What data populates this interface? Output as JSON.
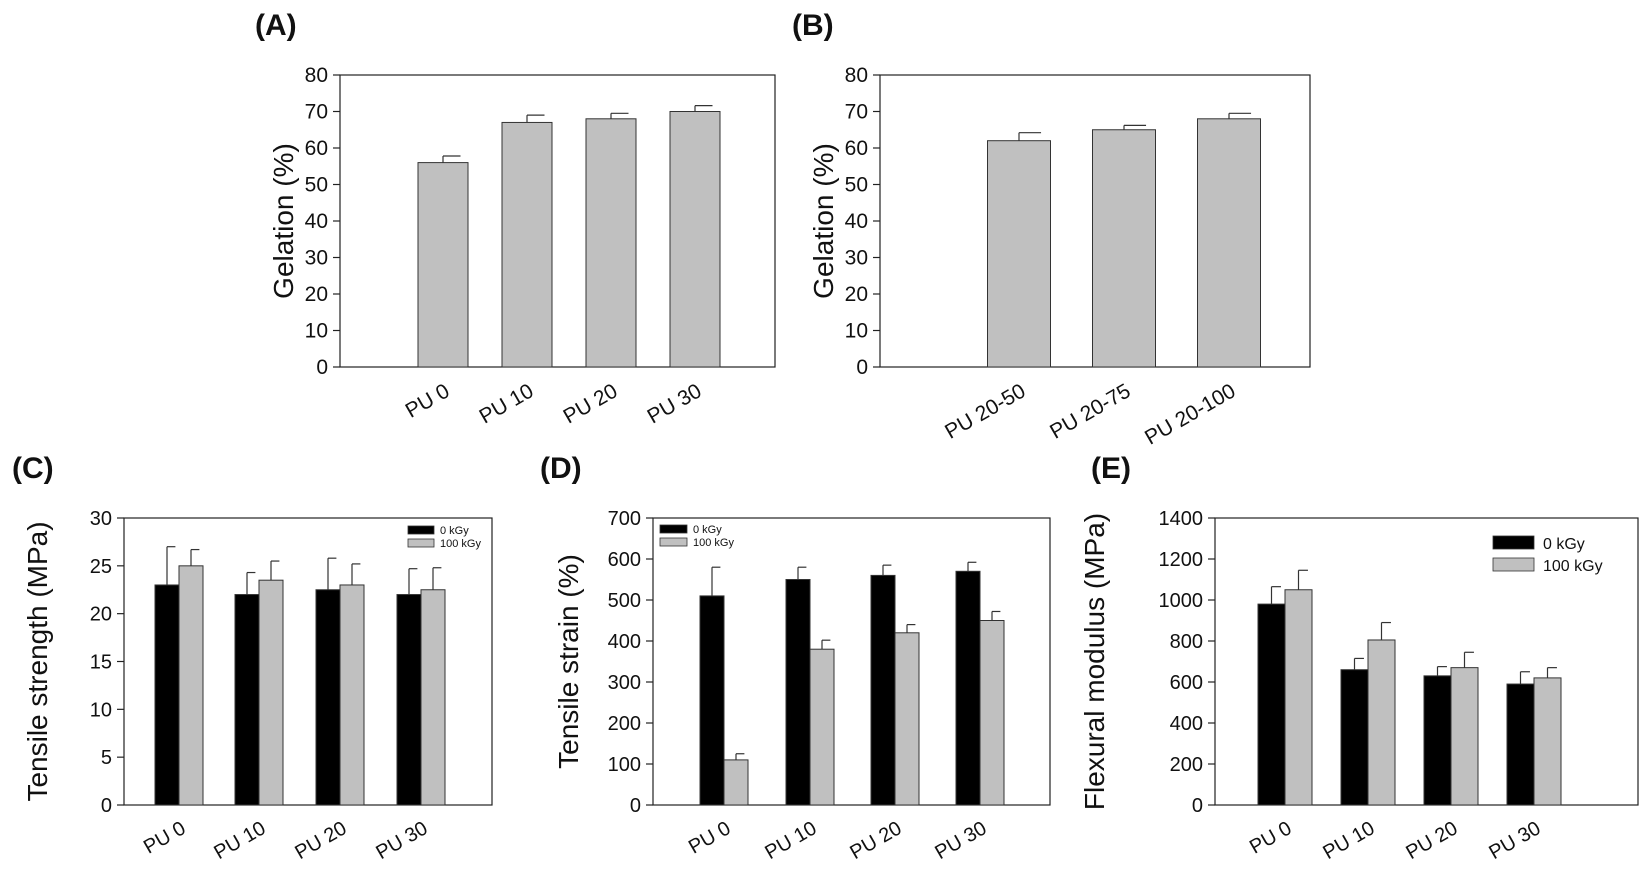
{
  "chart_data": [
    {
      "panel": "(A)",
      "type": "bar",
      "categories": [
        "PU 0",
        "PU 10",
        "PU 20",
        "PU 30"
      ],
      "series": [
        {
          "name": "",
          "values": [
            56,
            67,
            68,
            70
          ],
          "errors": [
            1.8,
            2.0,
            1.5,
            1.6
          ],
          "color": "#c0c0c0"
        }
      ],
      "xlabel": "",
      "ylabel": "Gelation (%)",
      "ylim": [
        0,
        80
      ],
      "yticks": [
        "0",
        "10",
        "20",
        "30",
        "40",
        "50",
        "60",
        "70",
        "80"
      ],
      "legend": []
    },
    {
      "panel": "(B)",
      "type": "bar",
      "categories": [
        "PU 20-50",
        "PU 20-75",
        "PU 20-100"
      ],
      "series": [
        {
          "name": "",
          "values": [
            62,
            65,
            68
          ],
          "errors": [
            2.2,
            1.2,
            1.5
          ],
          "color": "#c0c0c0"
        }
      ],
      "xlabel": "",
      "ylabel": "Gelation (%)",
      "ylim": [
        0,
        80
      ],
      "yticks": [
        "0",
        "10",
        "20",
        "30",
        "40",
        "50",
        "60",
        "70",
        "80"
      ],
      "legend": []
    },
    {
      "panel": "(C)",
      "type": "bar",
      "categories": [
        "PU 0",
        "PU 10",
        "PU 20",
        "PU 30"
      ],
      "series": [
        {
          "name": "0 kGy",
          "values": [
            23,
            22,
            22.5,
            22
          ],
          "errors": [
            4.0,
            2.3,
            3.3,
            2.7
          ],
          "color": "#000000"
        },
        {
          "name": "100 kGy",
          "values": [
            25,
            23.5,
            23,
            22.5
          ],
          "errors": [
            1.7,
            2.0,
            2.2,
            2.3
          ],
          "color": "#c0c0c0"
        }
      ],
      "xlabel": "",
      "ylabel": "Tensile strength (MPa)",
      "ylim": [
        0,
        30
      ],
      "yticks": [
        "0",
        "5",
        "10",
        "15",
        "20",
        "25",
        "30"
      ],
      "legend": [
        "0 kGy",
        "100 kGy"
      ]
    },
    {
      "panel": "(D)",
      "type": "bar",
      "categories": [
        "PU 0",
        "PU 10",
        "PU 20",
        "PU 30"
      ],
      "series": [
        {
          "name": "0 kGy",
          "values": [
            510,
            550,
            560,
            570
          ],
          "errors": [
            70,
            30,
            25,
            22
          ],
          "color": "#000000"
        },
        {
          "name": "100 kGy",
          "values": [
            110,
            380,
            420,
            450
          ],
          "errors": [
            15,
            22,
            20,
            22
          ],
          "color": "#c0c0c0"
        }
      ],
      "xlabel": "",
      "ylabel": "Tensile strain (%)",
      "ylim": [
        0,
        700
      ],
      "yticks": [
        "0",
        "100",
        "200",
        "300",
        "400",
        "500",
        "600",
        "700"
      ],
      "legend": [
        "0 kGy",
        "100 kGy"
      ]
    },
    {
      "panel": "(E)",
      "type": "bar",
      "categories": [
        "PU 0",
        "PU 10",
        "PU 20",
        "PU 30"
      ],
      "series": [
        {
          "name": "0 kGy",
          "values": [
            980,
            660,
            630,
            590
          ],
          "errors": [
            85,
            55,
            45,
            60
          ],
          "color": "#000000"
        },
        {
          "name": "100 kGy",
          "values": [
            1050,
            805,
            670,
            620
          ],
          "errors": [
            95,
            85,
            75,
            50
          ],
          "color": "#c0c0c0"
        }
      ],
      "xlabel": "",
      "ylabel": "Flexural modulus (MPa)",
      "ylim": [
        0,
        1400
      ],
      "yticks": [
        "0",
        "200",
        "400",
        "600",
        "800",
        "1000",
        "1200",
        "1400"
      ],
      "legend": [
        "0 kGy",
        "100 kGy"
      ]
    }
  ]
}
